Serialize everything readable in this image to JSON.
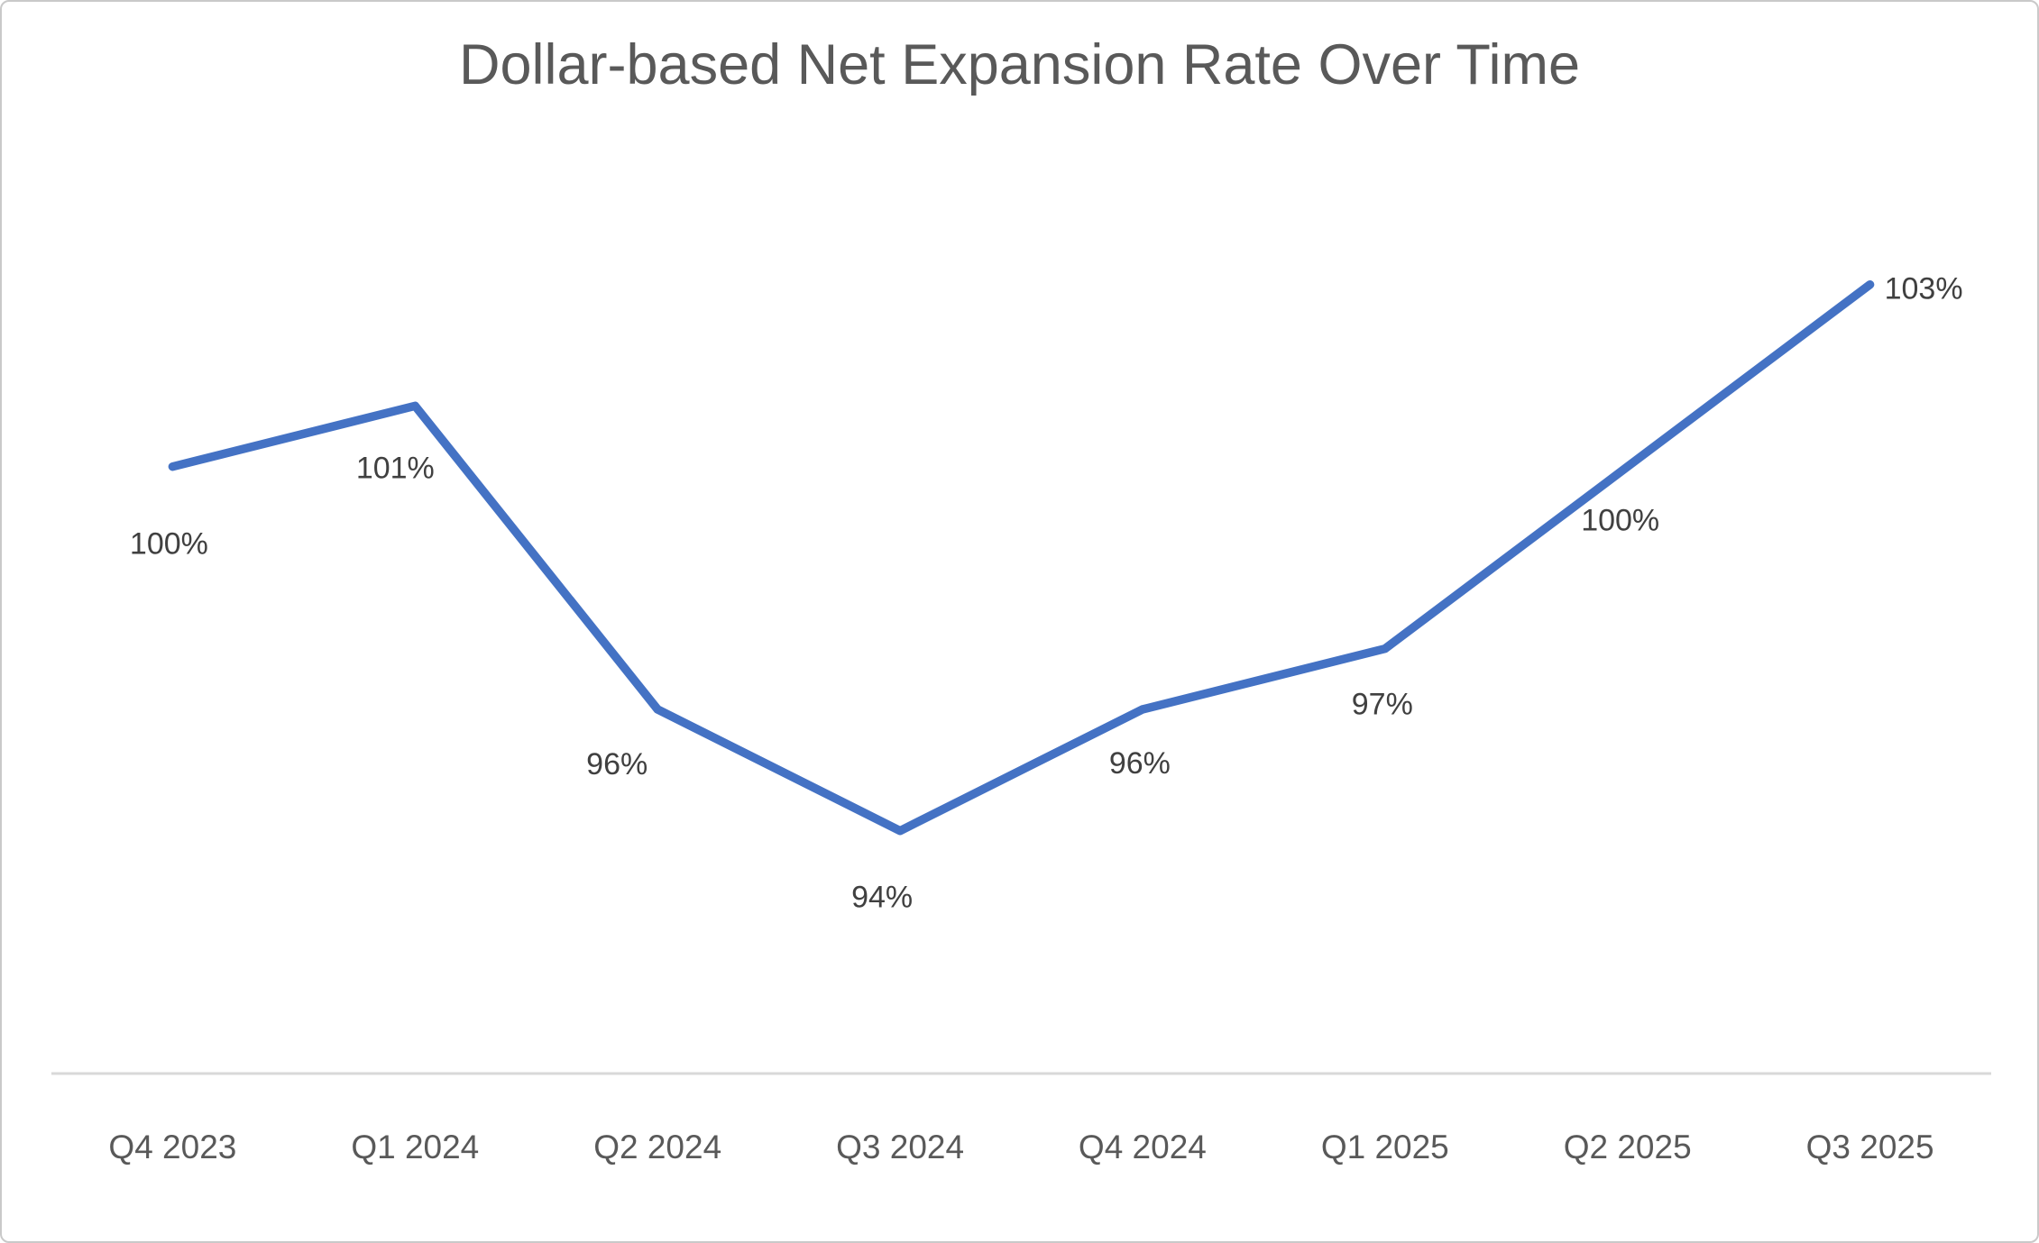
{
  "chart_data": {
    "type": "line",
    "title": "Dollar-based Net Expansion Rate Over Time",
    "categories": [
      "Q4 2023",
      "Q1 2024",
      "Q2 2024",
      "Q3 2024",
      "Q4 2024",
      "Q1 2025",
      "Q2 2025",
      "Q3 2025"
    ],
    "values": [
      100,
      101,
      96,
      94,
      96,
      97,
      100,
      103
    ],
    "data_labels": [
      "100%",
      "101%",
      "96%",
      "94%",
      "96%",
      "97%",
      "100%",
      "103%"
    ],
    "data_label_positions": [
      "below",
      "below",
      "below",
      "below",
      "below",
      "below",
      "below",
      "right"
    ],
    "xlabel": "",
    "ylabel": "",
    "ylim": [
      90,
      105
    ],
    "grid": false,
    "legend": "none",
    "colors": {
      "line": "#4472C4",
      "axis_line": "#D9D9D9",
      "title": "#595959",
      "data_label": "#404040",
      "tick_label": "#595959"
    }
  }
}
